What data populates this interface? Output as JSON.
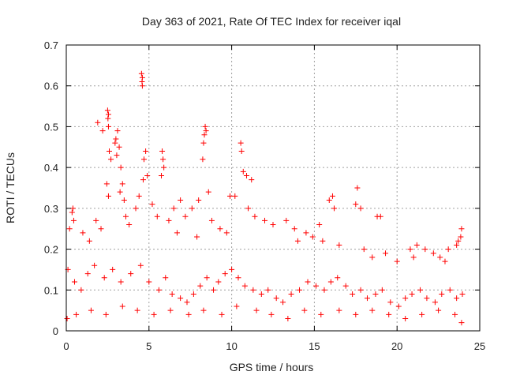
{
  "chart_data": {
    "type": "scatter",
    "title": "Day 363 of 2021, Rate Of TEC Index for receiver iqal",
    "xlabel": "GPS time / hours",
    "ylabel": "ROTI / TECUs",
    "xlim": [
      0,
      25
    ],
    "ylim": [
      0,
      0.7
    ],
    "x_ticks": [
      0,
      5,
      10,
      15,
      20,
      25
    ],
    "y_ticks": [
      0,
      0.1,
      0.2,
      0.3,
      0.4,
      0.5,
      0.6,
      0.7
    ],
    "grid": true,
    "marker": "+",
    "marker_color": "#ff0000",
    "series": [
      {
        "name": "ROTI",
        "points": [
          [
            4.55,
            0.63
          ],
          [
            4.6,
            0.62
          ],
          [
            4.58,
            0.61
          ],
          [
            4.6,
            0.6
          ],
          [
            2.5,
            0.54
          ],
          [
            2.55,
            0.53
          ],
          [
            2.52,
            0.52
          ],
          [
            2.55,
            0.5
          ],
          [
            1.9,
            0.51
          ],
          [
            2.2,
            0.49
          ],
          [
            8.4,
            0.5
          ],
          [
            8.45,
            0.49
          ],
          [
            8.35,
            0.48
          ],
          [
            8.3,
            0.46
          ],
          [
            8.25,
            0.42
          ],
          [
            3.1,
            0.49
          ],
          [
            3.0,
            0.47
          ],
          [
            2.95,
            0.46
          ],
          [
            3.2,
            0.45
          ],
          [
            3.05,
            0.43
          ],
          [
            10.55,
            0.46
          ],
          [
            10.6,
            0.44
          ],
          [
            10.7,
            0.39
          ],
          [
            10.9,
            0.38
          ],
          [
            11.2,
            0.37
          ],
          [
            5.8,
            0.44
          ],
          [
            5.85,
            0.42
          ],
          [
            5.9,
            0.4
          ],
          [
            5.75,
            0.38
          ],
          [
            4.8,
            0.44
          ],
          [
            4.7,
            0.42
          ],
          [
            4.9,
            0.38
          ],
          [
            4.65,
            0.37
          ],
          [
            2.6,
            0.44
          ],
          [
            2.7,
            0.42
          ],
          [
            2.45,
            0.36
          ],
          [
            2.55,
            0.33
          ],
          [
            3.3,
            0.4
          ],
          [
            3.4,
            0.36
          ],
          [
            3.25,
            0.34
          ],
          [
            3.5,
            0.32
          ],
          [
            17.6,
            0.35
          ],
          [
            16.1,
            0.33
          ],
          [
            15.9,
            0.32
          ],
          [
            16.2,
            0.3
          ],
          [
            9.9,
            0.33
          ],
          [
            10.2,
            0.33
          ],
          [
            8.6,
            0.34
          ],
          [
            8.0,
            0.32
          ],
          [
            17.5,
            0.31
          ],
          [
            17.8,
            0.3
          ],
          [
            18.8,
            0.28
          ],
          [
            19.0,
            0.28
          ],
          [
            0.4,
            0.3
          ],
          [
            0.35,
            0.29
          ],
          [
            0.45,
            0.27
          ],
          [
            0.2,
            0.25
          ],
          [
            6.9,
            0.32
          ],
          [
            6.5,
            0.3
          ],
          [
            7.2,
            0.28
          ],
          [
            7.6,
            0.3
          ],
          [
            11.0,
            0.3
          ],
          [
            11.4,
            0.28
          ],
          [
            12.0,
            0.27
          ],
          [
            12.5,
            0.26
          ],
          [
            13.3,
            0.27
          ],
          [
            13.8,
            0.25
          ],
          [
            14.5,
            0.24
          ],
          [
            15.3,
            0.26
          ],
          [
            14.0,
            0.22
          ],
          [
            14.9,
            0.23
          ],
          [
            15.5,
            0.22
          ],
          [
            16.5,
            0.21
          ],
          [
            18.0,
            0.2
          ],
          [
            18.5,
            0.18
          ],
          [
            19.3,
            0.19
          ],
          [
            20.0,
            0.17
          ],
          [
            20.8,
            0.2
          ],
          [
            21.2,
            0.21
          ],
          [
            21.7,
            0.2
          ],
          [
            22.2,
            0.19
          ],
          [
            22.6,
            0.18
          ],
          [
            23.1,
            0.2
          ],
          [
            23.6,
            0.21
          ],
          [
            23.9,
            0.25
          ],
          [
            23.85,
            0.23
          ],
          [
            23.7,
            0.22
          ],
          [
            22.9,
            0.17
          ],
          [
            21.0,
            0.18
          ],
          [
            1.0,
            0.24
          ],
          [
            1.4,
            0.22
          ],
          [
            1.8,
            0.27
          ],
          [
            2.1,
            0.25
          ],
          [
            3.6,
            0.28
          ],
          [
            3.8,
            0.26
          ],
          [
            4.2,
            0.3
          ],
          [
            4.4,
            0.33
          ],
          [
            5.2,
            0.31
          ],
          [
            5.5,
            0.28
          ],
          [
            6.2,
            0.27
          ],
          [
            6.7,
            0.24
          ],
          [
            7.9,
            0.23
          ],
          [
            8.8,
            0.27
          ],
          [
            9.3,
            0.25
          ],
          [
            9.7,
            0.24
          ],
          [
            0.1,
            0.15
          ],
          [
            0.5,
            0.12
          ],
          [
            0.9,
            0.1
          ],
          [
            1.3,
            0.14
          ],
          [
            1.7,
            0.16
          ],
          [
            2.3,
            0.13
          ],
          [
            2.8,
            0.15
          ],
          [
            3.3,
            0.12
          ],
          [
            3.9,
            0.14
          ],
          [
            4.5,
            0.16
          ],
          [
            5.0,
            0.12
          ],
          [
            5.6,
            0.1
          ],
          [
            6.0,
            0.13
          ],
          [
            6.4,
            0.09
          ],
          [
            6.9,
            0.08
          ],
          [
            7.3,
            0.07
          ],
          [
            7.7,
            0.09
          ],
          [
            8.1,
            0.11
          ],
          [
            8.5,
            0.13
          ],
          [
            8.9,
            0.1
          ],
          [
            9.2,
            0.12
          ],
          [
            9.6,
            0.14
          ],
          [
            10.0,
            0.15
          ],
          [
            10.4,
            0.13
          ],
          [
            10.8,
            0.11
          ],
          [
            11.3,
            0.1
          ],
          [
            11.8,
            0.09
          ],
          [
            12.2,
            0.1
          ],
          [
            12.7,
            0.08
          ],
          [
            13.1,
            0.07
          ],
          [
            13.6,
            0.09
          ],
          [
            14.1,
            0.1
          ],
          [
            14.6,
            0.12
          ],
          [
            15.1,
            0.11
          ],
          [
            15.6,
            0.1
          ],
          [
            16.0,
            0.12
          ],
          [
            16.4,
            0.13
          ],
          [
            16.9,
            0.11
          ],
          [
            17.3,
            0.09
          ],
          [
            17.8,
            0.1
          ],
          [
            18.2,
            0.08
          ],
          [
            18.7,
            0.09
          ],
          [
            19.1,
            0.1
          ],
          [
            19.6,
            0.07
          ],
          [
            20.1,
            0.06
          ],
          [
            20.5,
            0.08
          ],
          [
            20.9,
            0.09
          ],
          [
            21.4,
            0.1
          ],
          [
            21.8,
            0.08
          ],
          [
            22.3,
            0.07
          ],
          [
            22.7,
            0.09
          ],
          [
            23.2,
            0.1
          ],
          [
            23.6,
            0.08
          ],
          [
            23.95,
            0.09
          ],
          [
            0.05,
            0.03
          ],
          [
            0.6,
            0.04
          ],
          [
            1.5,
            0.05
          ],
          [
            2.4,
            0.04
          ],
          [
            3.4,
            0.06
          ],
          [
            4.3,
            0.05
          ],
          [
            5.3,
            0.04
          ],
          [
            6.3,
            0.05
          ],
          [
            7.4,
            0.04
          ],
          [
            8.3,
            0.05
          ],
          [
            9.4,
            0.04
          ],
          [
            10.3,
            0.06
          ],
          [
            11.5,
            0.05
          ],
          [
            12.4,
            0.04
          ],
          [
            13.4,
            0.03
          ],
          [
            14.4,
            0.05
          ],
          [
            15.4,
            0.04
          ],
          [
            16.5,
            0.05
          ],
          [
            17.5,
            0.04
          ],
          [
            18.5,
            0.05
          ],
          [
            19.5,
            0.04
          ],
          [
            20.5,
            0.03
          ],
          [
            21.5,
            0.04
          ],
          [
            22.5,
            0.05
          ],
          [
            23.5,
            0.04
          ],
          [
            23.9,
            0.02
          ]
        ]
      }
    ]
  }
}
